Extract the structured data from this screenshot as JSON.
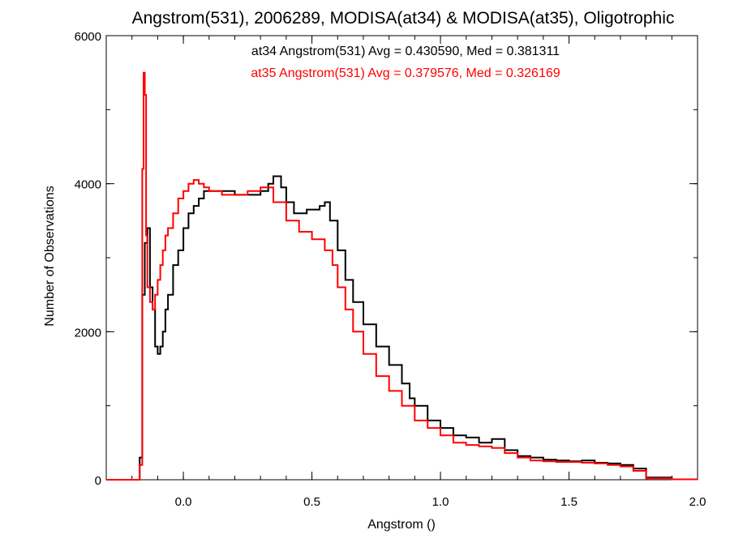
{
  "chart_data": {
    "type": "line",
    "step": true,
    "title": "Angstrom(531), 2006289, MODISA(at34) & MODISA(at35), Oligotrophic",
    "xlabel": "Angstrom ()",
    "ylabel": "Number of Observations",
    "xlim": [
      -0.3,
      2.0
    ],
    "ylim": [
      0,
      6000
    ],
    "x_ticks": [
      0.0,
      0.5,
      1.0,
      1.5,
      2.0
    ],
    "x_tick_labels": [
      "0.0",
      "0.5",
      "1.0",
      "1.5",
      "2.0"
    ],
    "y_ticks": [
      0,
      2000,
      4000,
      6000
    ],
    "y_tick_labels": [
      "0",
      "2000",
      "4000",
      "6000"
    ],
    "annotations": [
      {
        "text": "at34 Angstrom(531) Avg = 0.430590, Med = 0.381311",
        "color": "#000000"
      },
      {
        "text": "at35 Angstrom(531) Avg = 0.379576, Med = 0.326169",
        "color": "#ff0000"
      }
    ],
    "series": [
      {
        "color": "#000000",
        "x": [
          -0.3,
          -0.18,
          -0.17,
          -0.16,
          -0.15,
          -0.14,
          -0.13,
          -0.12,
          -0.11,
          -0.1,
          -0.09,
          -0.08,
          -0.07,
          -0.06,
          -0.04,
          -0.02,
          0.0,
          0.02,
          0.04,
          0.06,
          0.08,
          0.1,
          0.15,
          0.2,
          0.25,
          0.3,
          0.33,
          0.35,
          0.38,
          0.4,
          0.43,
          0.45,
          0.48,
          0.5,
          0.53,
          0.55,
          0.57,
          0.6,
          0.63,
          0.66,
          0.7,
          0.75,
          0.8,
          0.85,
          0.88,
          0.9,
          0.95,
          1.0,
          1.05,
          1.1,
          1.15,
          1.2,
          1.25,
          1.3,
          1.35,
          1.4,
          1.45,
          1.5,
          1.55,
          1.6,
          1.65,
          1.7,
          1.75,
          1.8,
          1.9,
          2.0
        ],
        "y": [
          0,
          0,
          300,
          2500,
          3200,
          3400,
          2600,
          2300,
          1800,
          1700,
          1800,
          2000,
          2300,
          2500,
          2900,
          3100,
          3400,
          3600,
          3700,
          3800,
          3900,
          3900,
          3900,
          3850,
          3850,
          3900,
          4000,
          4100,
          3950,
          3750,
          3600,
          3600,
          3650,
          3650,
          3700,
          3750,
          3500,
          3100,
          2700,
          2400,
          2100,
          1800,
          1550,
          1300,
          1100,
          1000,
          800,
          700,
          600,
          570,
          500,
          550,
          400,
          320,
          300,
          270,
          260,
          250,
          260,
          230,
          220,
          200,
          150,
          30,
          5,
          5
        ]
      },
      {
        "color": "#ff0000",
        "x": [
          -0.3,
          -0.18,
          -0.17,
          -0.16,
          -0.155,
          -0.15,
          -0.145,
          -0.14,
          -0.13,
          -0.12,
          -0.11,
          -0.1,
          -0.09,
          -0.08,
          -0.07,
          -0.06,
          -0.04,
          -0.02,
          0.0,
          0.02,
          0.04,
          0.06,
          0.08,
          0.1,
          0.15,
          0.2,
          0.25,
          0.3,
          0.35,
          0.4,
          0.45,
          0.5,
          0.55,
          0.58,
          0.6,
          0.63,
          0.66,
          0.7,
          0.75,
          0.8,
          0.85,
          0.9,
          0.95,
          1.0,
          1.05,
          1.1,
          1.15,
          1.2,
          1.25,
          1.3,
          1.35,
          1.4,
          1.45,
          1.5,
          1.55,
          1.6,
          1.65,
          1.7,
          1.75,
          1.8,
          1.9,
          2.0
        ],
        "y": [
          0,
          0,
          200,
          4200,
          5500,
          5200,
          3300,
          2600,
          2400,
          2300,
          2500,
          2700,
          2900,
          3100,
          3300,
          3400,
          3600,
          3800,
          3900,
          4000,
          4050,
          4000,
          3950,
          3900,
          3850,
          3850,
          3900,
          3950,
          3750,
          3500,
          3350,
          3250,
          3100,
          2900,
          2600,
          2300,
          2000,
          1700,
          1400,
          1200,
          1000,
          800,
          700,
          600,
          500,
          470,
          450,
          430,
          360,
          300,
          260,
          250,
          240,
          240,
          230,
          220,
          200,
          180,
          120,
          20,
          5,
          5
        ]
      }
    ]
  }
}
